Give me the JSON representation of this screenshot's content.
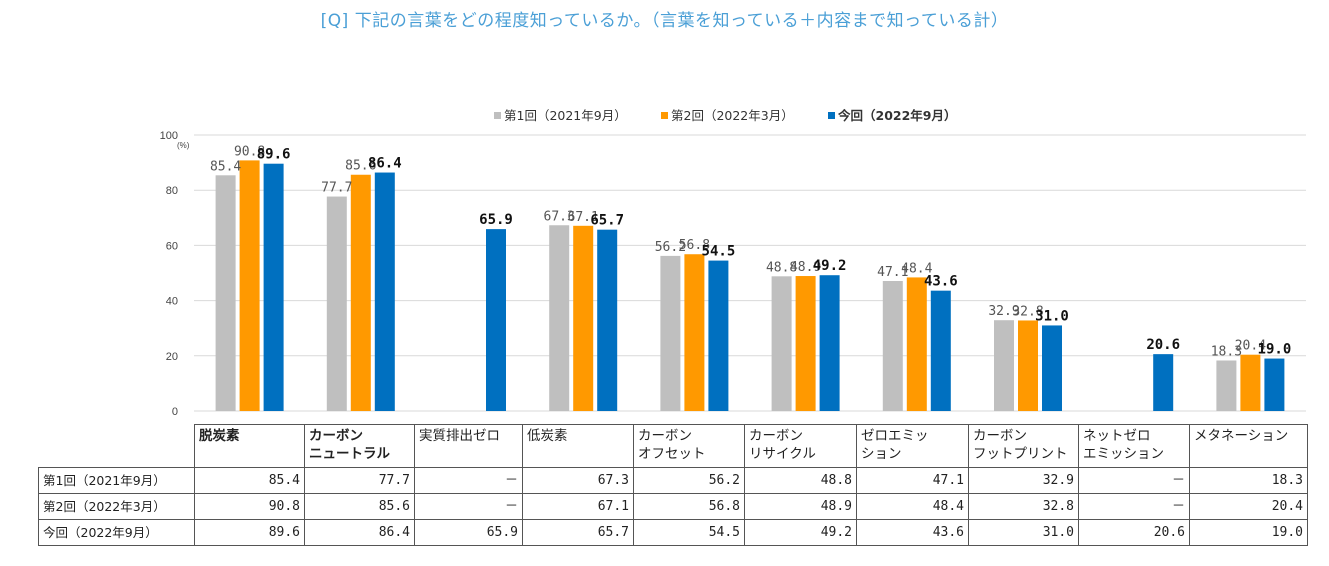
{
  "question_text": "[Q] 下記の言葉をどの程度知っているか。（言葉を知っている＋内容まで知っている計）",
  "chart_data": {
    "type": "bar",
    "categories": [
      "脱炭素",
      "カーボンニュートラル",
      "実質排出ゼロ",
      "低炭素",
      "カーボンオフセット",
      "カーボンリサイクル",
      "ゼロエミッション",
      "カーボンフットプリント",
      "ネットゼロエミッション",
      "メタネーション"
    ],
    "category_lines": [
      [
        "脱炭素"
      ],
      [
        "カーボン",
        "ニュートラル"
      ],
      [
        "実質排出ゼロ"
      ],
      [
        "低炭素"
      ],
      [
        "カーボン",
        "オフセット"
      ],
      [
        "カーボン",
        "リサイクル"
      ],
      [
        "ゼロエミッ",
        "ション"
      ],
      [
        "カーボン",
        "フットプリント"
      ],
      [
        "ネットゼロ",
        "エミッション"
      ],
      [
        "メタネーション"
      ]
    ],
    "bold_categories": [
      true,
      true,
      false,
      false,
      false,
      false,
      false,
      false,
      false,
      false
    ],
    "series": [
      {
        "name": "第1回（2021年9月）",
        "color": "#bfbfbf",
        "bold": false,
        "values": [
          85.4,
          77.7,
          null,
          67.3,
          56.2,
          48.8,
          47.1,
          32.9,
          null,
          18.3
        ],
        "labels": [
          "85.4",
          "77.7",
          "",
          "67.3",
          "56.2",
          "48.8",
          "47.1",
          "32.9",
          "",
          "18.3"
        ]
      },
      {
        "name": "第2回（2022年3月）",
        "color": "#ff9900",
        "bold": false,
        "values": [
          90.8,
          85.6,
          null,
          67.1,
          56.8,
          48.9,
          48.4,
          32.8,
          null,
          20.4
        ],
        "labels": [
          "90.8",
          "85.6",
          "",
          "67.1",
          "56.8",
          "48.9",
          "48.4",
          "32.8",
          "",
          "20.4"
        ]
      },
      {
        "name": "今回（2022年9月）",
        "color": "#0070c0",
        "bold": true,
        "values": [
          89.6,
          86.4,
          65.9,
          65.7,
          54.5,
          49.2,
          43.6,
          31.0,
          20.6,
          19.0
        ],
        "labels": [
          "89.6",
          "86.4",
          "65.9",
          "65.7",
          "54.5",
          "49.2",
          "43.6",
          "31.0",
          "20.6",
          "19.0"
        ]
      }
    ],
    "y_ticks": [
      "0",
      "20",
      "40",
      "60",
      "80",
      "100"
    ],
    "y_unit": "(%)",
    "ylim": [
      0,
      100
    ],
    "grid": true,
    "legend_position": "top-center"
  },
  "table": {
    "missing_mark": "－",
    "rows": [
      {
        "label": "第1回（2021年9月）",
        "cells": [
          "85.4",
          "77.7",
          "－",
          "67.3",
          "56.2",
          "48.8",
          "47.1",
          "32.9",
          "－",
          "18.3"
        ]
      },
      {
        "label": "第2回（2022年3月）",
        "cells": [
          "90.8",
          "85.6",
          "－",
          "67.1",
          "56.8",
          "48.9",
          "48.4",
          "32.8",
          "－",
          "20.4"
        ]
      },
      {
        "label": "今回（2022年9月）",
        "cells": [
          "89.6",
          "86.4",
          "65.9",
          "65.7",
          "54.5",
          "49.2",
          "43.6",
          "31.0",
          "20.6",
          "19.0"
        ]
      }
    ]
  }
}
